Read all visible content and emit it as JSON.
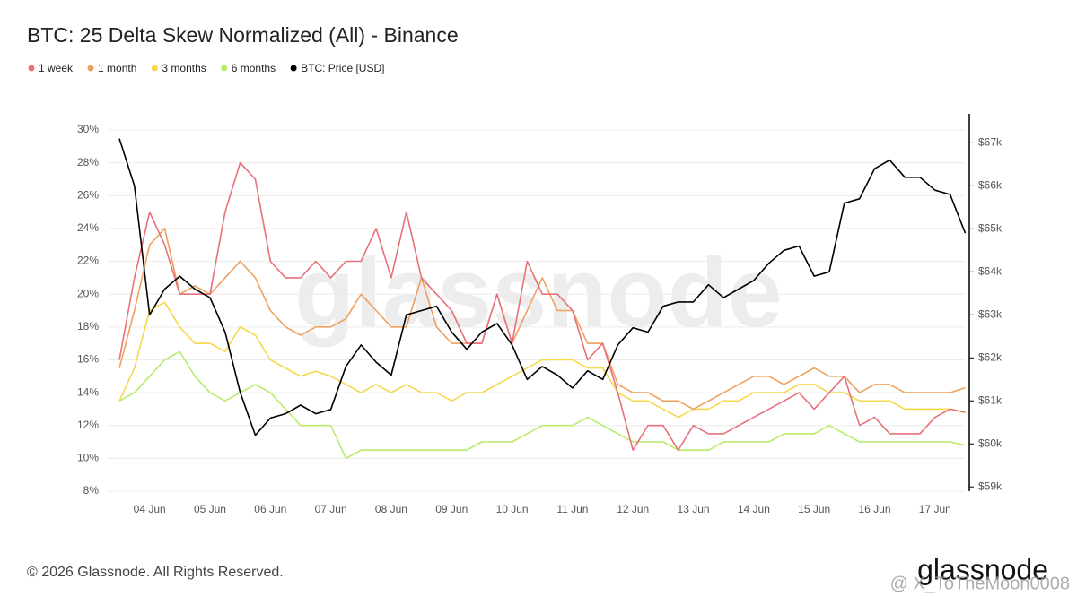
{
  "chart_data": {
    "type": "line",
    "title": "BTC: 25 Delta Skew Normalized (All) - Binance",
    "watermark": "glassnode",
    "categories": [
      null,
      null,
      "04 Jun",
      null,
      null,
      null,
      "05 Jun",
      null,
      null,
      null,
      "06 Jun",
      null,
      null,
      null,
      "07 Jun",
      null,
      null,
      null,
      "08 Jun",
      null,
      null,
      null,
      "09 Jun",
      null,
      null,
      null,
      "10 Jun",
      null,
      null,
      null,
      "11 Jun",
      null,
      null,
      null,
      "12 Jun",
      null,
      null,
      null,
      "13 Jun",
      null,
      null,
      null,
      "14 Jun",
      null,
      null,
      null,
      "15 Jun",
      null,
      null,
      null,
      "16 Jun",
      null,
      null,
      null,
      "17 Jun",
      null,
      null
    ],
    "series": [
      {
        "name": "1 week",
        "color": "#e8707a",
        "values": [
          16,
          21,
          25,
          23,
          20,
          20,
          20,
          25,
          28,
          27,
          22,
          21,
          21,
          22,
          21,
          22,
          22,
          24,
          21,
          25,
          21,
          20,
          19,
          17,
          17,
          20,
          17,
          22,
          20,
          20,
          19,
          16,
          17,
          14,
          10.5,
          12,
          12,
          10.5,
          12,
          11.5,
          11.5,
          12,
          12.5,
          13,
          13.5,
          14,
          13,
          14,
          15,
          12,
          12.5,
          11.5,
          11.5,
          11.5,
          12.5,
          13,
          12.8
        ]
      },
      {
        "name": "1 month",
        "color": "#eea15e",
        "values": [
          15.5,
          19,
          23,
          24,
          20,
          20.5,
          20,
          21,
          22,
          21,
          19,
          18,
          17.5,
          18,
          18,
          18.5,
          20,
          19,
          18,
          18,
          21,
          18,
          17,
          17,
          17,
          20,
          17,
          19,
          21,
          19,
          19,
          17,
          17,
          14.5,
          14,
          14,
          13.5,
          13.5,
          13,
          13.5,
          14,
          14.5,
          15,
          15,
          14.5,
          15,
          15.5,
          15,
          15,
          14,
          14.5,
          14.5,
          14,
          14,
          14,
          14,
          14.3
        ]
      },
      {
        "name": "3 months",
        "color": "#f5d84a",
        "values": [
          13.5,
          15.5,
          19,
          19.5,
          18,
          17,
          17,
          16.5,
          18,
          17.5,
          16,
          15.5,
          15,
          15.3,
          15,
          14.5,
          14,
          14.5,
          14,
          14.5,
          14,
          14,
          13.5,
          14,
          14,
          14.5,
          15,
          15.5,
          16,
          16,
          16,
          15.5,
          15.5,
          14,
          13.5,
          13.5,
          13,
          12.5,
          13,
          13,
          13.5,
          13.5,
          14,
          14,
          14,
          14.5,
          14.5,
          14,
          14,
          13.5,
          13.5,
          13.5,
          13,
          13,
          13,
          13,
          12.8
        ]
      },
      {
        "name": "6 months",
        "color": "#b7ec6a",
        "values": [
          13.5,
          14,
          15,
          16,
          16.5,
          15,
          14,
          13.5,
          14,
          14.5,
          14,
          13,
          12,
          12,
          12,
          10,
          10.5,
          10.5,
          10.5,
          10.5,
          10.5,
          10.5,
          10.5,
          10.5,
          11,
          11,
          11,
          11.5,
          12,
          12,
          12,
          12.5,
          12,
          11.5,
          11,
          11,
          11,
          10.5,
          10.5,
          10.5,
          11,
          11,
          11,
          11,
          11.5,
          11.5,
          11.5,
          12,
          11.5,
          11,
          11,
          11,
          11,
          11,
          11,
          11,
          10.8
        ]
      },
      {
        "name": "BTC: Price [USD]",
        "color": "#000000",
        "axis": "y2",
        "values": [
          67100,
          66000,
          63000,
          63600,
          63900,
          63600,
          63400,
          62600,
          61200,
          60200,
          60600,
          60700,
          60900,
          60700,
          60800,
          61800,
          62300,
          61900,
          61600,
          63000,
          63100,
          63200,
          62600,
          62200,
          62600,
          62800,
          62300,
          61500,
          61800,
          61600,
          61300,
          61700,
          61500,
          62300,
          62700,
          62600,
          63200,
          63300,
          63300,
          63700,
          63400,
          63600,
          63800,
          64200,
          64500,
          64600,
          63900,
          64000,
          65600,
          65700,
          66400,
          66600,
          66200,
          66200,
          65900,
          65800,
          64900
        ]
      }
    ],
    "ylim": [
      8,
      30
    ],
    "yticks": [
      {
        "value": 8,
        "label": "8%"
      },
      {
        "value": 10,
        "label": "10%"
      },
      {
        "value": 12,
        "label": "12%"
      },
      {
        "value": 14,
        "label": "14%"
      },
      {
        "value": 16,
        "label": "16%"
      },
      {
        "value": 18,
        "label": "18%"
      },
      {
        "value": 20,
        "label": "20%"
      },
      {
        "value": 22,
        "label": "22%"
      },
      {
        "value": 24,
        "label": "24%"
      },
      {
        "value": 26,
        "label": "26%"
      },
      {
        "value": 28,
        "label": "28%"
      },
      {
        "value": 30,
        "label": "30%"
      }
    ],
    "y2lim": [
      58900,
      67300
    ],
    "y2ticks": [
      {
        "value": 59000,
        "label": "$59k"
      },
      {
        "value": 60000,
        "label": "$60k"
      },
      {
        "value": 61000,
        "label": "$61k"
      },
      {
        "value": 62000,
        "label": "$62k"
      },
      {
        "value": 63000,
        "label": "$63k"
      },
      {
        "value": 64000,
        "label": "$64k"
      },
      {
        "value": 65000,
        "label": "$65k"
      },
      {
        "value": 66000,
        "label": "$66k"
      },
      {
        "value": 67000,
        "label": "$67k"
      }
    ],
    "grid": true
  },
  "footer": {
    "copyright": "© 2026 Glassnode. All Rights Reserved.",
    "logo": "glassnode",
    "credit": "@ X_ToTheMoon0008"
  }
}
